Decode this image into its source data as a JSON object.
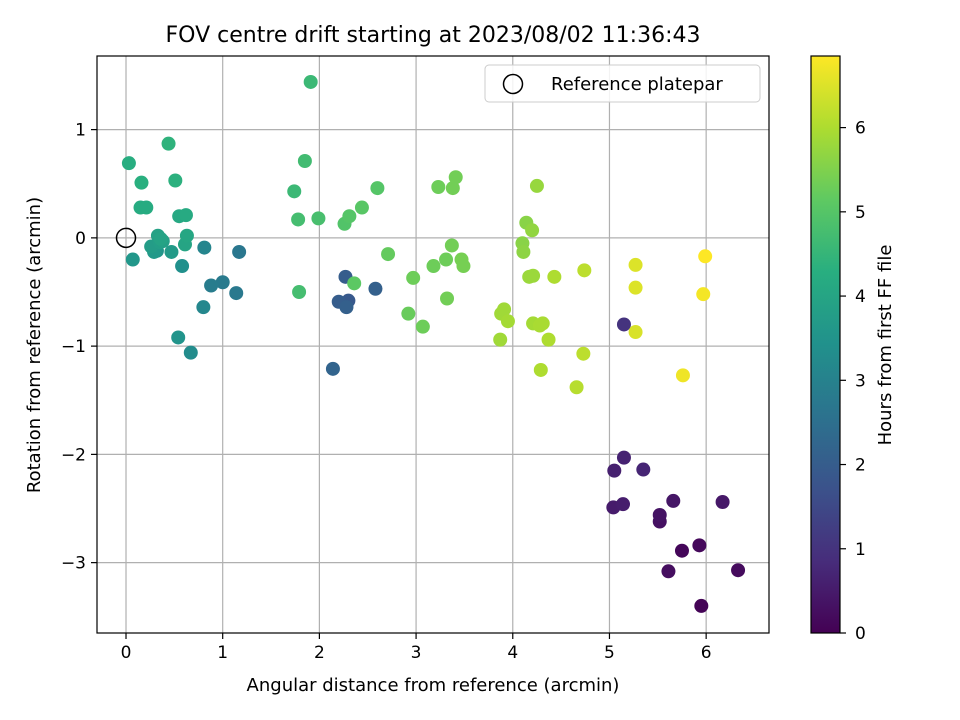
{
  "chart_data": {
    "type": "scatter",
    "title": "FOV centre drift starting at 2023/08/02 11:36:43",
    "xlabel": "Angular distance from reference (arcmin)",
    "ylabel": "Rotation from reference (arcmin)",
    "xlim": [
      -0.3,
      6.65
    ],
    "ylim": [
      -3.65,
      1.68
    ],
    "xticks": [
      0,
      1,
      2,
      3,
      4,
      5,
      6
    ],
    "yticks": [
      -3,
      -2,
      -1,
      0,
      1
    ],
    "xtick_labels": [
      "0",
      "1",
      "2",
      "3",
      "4",
      "5",
      "6"
    ],
    "ytick_labels": [
      "−3",
      "−2",
      "−1",
      "0",
      "1"
    ],
    "grid": true,
    "legend": {
      "position": "top-right",
      "entries": [
        "Reference platepar"
      ]
    },
    "reference_point": {
      "x": 0,
      "y": 0,
      "name": "Reference platepar"
    },
    "colorbar": {
      "label": "Hours from first FF file",
      "colormap": "viridis",
      "range": [
        0,
        6.85
      ],
      "ticks": [
        0,
        1,
        2,
        3,
        4,
        5,
        6
      ],
      "tick_labels": [
        "0",
        "1",
        "2",
        "3",
        "4",
        "5",
        "6"
      ]
    },
    "points": [
      {
        "x": 5.95,
        "y": -3.4,
        "h": 0.05
      },
      {
        "x": 5.75,
        "y": -2.89,
        "h": 0.1
      },
      {
        "x": 5.93,
        "y": -2.84,
        "h": 0.15
      },
      {
        "x": 6.33,
        "y": -3.07,
        "h": 0.2
      },
      {
        "x": 5.61,
        "y": -3.08,
        "h": 0.25
      },
      {
        "x": 5.52,
        "y": -2.62,
        "h": 0.3
      },
      {
        "x": 5.52,
        "y": -2.56,
        "h": 0.35
      },
      {
        "x": 5.66,
        "y": -2.43,
        "h": 0.4
      },
      {
        "x": 6.17,
        "y": -2.44,
        "h": 0.45
      },
      {
        "x": 5.04,
        "y": -2.49,
        "h": 0.5
      },
      {
        "x": 5.14,
        "y": -2.46,
        "h": 0.55
      },
      {
        "x": 5.05,
        "y": -2.15,
        "h": 0.6
      },
      {
        "x": 5.15,
        "y": -2.03,
        "h": 0.65
      },
      {
        "x": 5.35,
        "y": -2.14,
        "h": 0.7
      },
      {
        "x": 5.15,
        "y": -0.8,
        "h": 1.0
      },
      {
        "x": 2.3,
        "y": -0.58,
        "h": 1.9
      },
      {
        "x": 2.27,
        "y": -0.36,
        "h": 2.0
      },
      {
        "x": 2.2,
        "y": -0.59,
        "h": 2.0
      },
      {
        "x": 2.28,
        "y": -0.64,
        "h": 2.1
      },
      {
        "x": 2.58,
        "y": -0.47,
        "h": 2.1
      },
      {
        "x": 2.14,
        "y": -1.21,
        "h": 2.2
      },
      {
        "x": 1.17,
        "y": -0.13,
        "h": 2.7
      },
      {
        "x": 1.14,
        "y": -0.51,
        "h": 2.75
      },
      {
        "x": 1.0,
        "y": -0.41,
        "h": 2.8
      },
      {
        "x": 0.88,
        "y": -0.44,
        "h": 2.85
      },
      {
        "x": 0.81,
        "y": -0.09,
        "h": 3.1
      },
      {
        "x": 0.8,
        "y": -0.64,
        "h": 3.15
      },
      {
        "x": 0.67,
        "y": -1.06,
        "h": 3.3
      },
      {
        "x": 0.58,
        "y": -0.26,
        "h": 3.4
      },
      {
        "x": 0.54,
        "y": -0.92,
        "h": 3.5
      },
      {
        "x": 0.32,
        "y": -0.12,
        "h": 3.55
      },
      {
        "x": 0.07,
        "y": -0.2,
        "h": 3.6
      },
      {
        "x": 0.29,
        "y": -0.13,
        "h": 3.65
      },
      {
        "x": 0.47,
        "y": -0.13,
        "h": 3.7
      },
      {
        "x": 0.26,
        "y": -0.08,
        "h": 3.75
      },
      {
        "x": 0.35,
        "y": -0.04,
        "h": 3.8
      },
      {
        "x": 0.38,
        "y": -0.03,
        "h": 3.85
      },
      {
        "x": 0.33,
        "y": 0.02,
        "h": 3.9
      },
      {
        "x": 0.36,
        "y": -0.01,
        "h": 3.95
      },
      {
        "x": 0.61,
        "y": -0.06,
        "h": 4.0
      },
      {
        "x": 0.63,
        "y": 0.02,
        "h": 4.05
      },
      {
        "x": 0.55,
        "y": 0.2,
        "h": 4.1
      },
      {
        "x": 0.62,
        "y": 0.21,
        "h": 4.15
      },
      {
        "x": 0.15,
        "y": 0.28,
        "h": 4.2
      },
      {
        "x": 0.21,
        "y": 0.28,
        "h": 4.2
      },
      {
        "x": 0.03,
        "y": 0.69,
        "h": 4.25
      },
      {
        "x": 0.16,
        "y": 0.51,
        "h": 4.3
      },
      {
        "x": 0.51,
        "y": 0.53,
        "h": 4.35
      },
      {
        "x": 0.44,
        "y": 0.87,
        "h": 4.4
      },
      {
        "x": 1.74,
        "y": 0.43,
        "h": 4.6
      },
      {
        "x": 1.85,
        "y": 0.71,
        "h": 4.7
      },
      {
        "x": 1.78,
        "y": 0.17,
        "h": 4.75
      },
      {
        "x": 1.99,
        "y": 0.18,
        "h": 4.8
      },
      {
        "x": 1.91,
        "y": 1.44,
        "h": 4.6
      },
      {
        "x": 1.79,
        "y": -0.5,
        "h": 4.75
      },
      {
        "x": 2.26,
        "y": 0.13,
        "h": 4.95
      },
      {
        "x": 2.31,
        "y": 0.2,
        "h": 5.0
      },
      {
        "x": 2.44,
        "y": 0.28,
        "h": 5.05
      },
      {
        "x": 2.6,
        "y": 0.46,
        "h": 5.0
      },
      {
        "x": 2.36,
        "y": -0.42,
        "h": 5.1
      },
      {
        "x": 2.71,
        "y": -0.15,
        "h": 5.2
      },
      {
        "x": 2.92,
        "y": -0.7,
        "h": 5.25
      },
      {
        "x": 2.97,
        "y": -0.37,
        "h": 5.3
      },
      {
        "x": 3.07,
        "y": -0.82,
        "h": 5.3
      },
      {
        "x": 3.18,
        "y": -0.26,
        "h": 5.3
      },
      {
        "x": 3.23,
        "y": 0.47,
        "h": 5.3
      },
      {
        "x": 3.31,
        "y": -0.2,
        "h": 5.3
      },
      {
        "x": 3.32,
        "y": -0.56,
        "h": 5.35
      },
      {
        "x": 3.37,
        "y": -0.07,
        "h": 5.35
      },
      {
        "x": 3.38,
        "y": 0.46,
        "h": 5.35
      },
      {
        "x": 3.41,
        "y": 0.56,
        "h": 5.35
      },
      {
        "x": 3.47,
        "y": -0.2,
        "h": 5.4
      },
      {
        "x": 3.49,
        "y": -0.26,
        "h": 5.4
      },
      {
        "x": 3.87,
        "y": -0.94,
        "h": 5.85
      },
      {
        "x": 3.88,
        "y": -0.7,
        "h": 5.85
      },
      {
        "x": 3.91,
        "y": -0.66,
        "h": 5.85
      },
      {
        "x": 3.95,
        "y": -0.77,
        "h": 5.9
      },
      {
        "x": 4.1,
        "y": -0.05,
        "h": 5.6
      },
      {
        "x": 4.11,
        "y": -0.13,
        "h": 5.65
      },
      {
        "x": 4.14,
        "y": 0.14,
        "h": 5.6
      },
      {
        "x": 4.17,
        "y": -0.36,
        "h": 5.8
      },
      {
        "x": 4.2,
        "y": 0.07,
        "h": 5.7
      },
      {
        "x": 4.21,
        "y": -0.35,
        "h": 5.8
      },
      {
        "x": 4.21,
        "y": -0.79,
        "h": 5.9
      },
      {
        "x": 4.25,
        "y": 0.48,
        "h": 5.75
      },
      {
        "x": 4.28,
        "y": -0.81,
        "h": 5.95
      },
      {
        "x": 4.29,
        "y": -1.22,
        "h": 6.0
      },
      {
        "x": 4.31,
        "y": -0.79,
        "h": 5.95
      },
      {
        "x": 4.37,
        "y": -0.94,
        "h": 6.0
      },
      {
        "x": 4.43,
        "y": -0.36,
        "h": 6.0
      },
      {
        "x": 4.66,
        "y": -1.38,
        "h": 6.1
      },
      {
        "x": 4.73,
        "y": -1.07,
        "h": 6.15
      },
      {
        "x": 4.74,
        "y": -0.3,
        "h": 6.15
      },
      {
        "x": 5.27,
        "y": -0.25,
        "h": 6.5
      },
      {
        "x": 5.27,
        "y": -0.46,
        "h": 6.5
      },
      {
        "x": 5.27,
        "y": -0.87,
        "h": 6.45
      },
      {
        "x": 5.76,
        "y": -1.27,
        "h": 6.7
      },
      {
        "x": 5.97,
        "y": -0.52,
        "h": 6.75
      },
      {
        "x": 5.99,
        "y": -0.17,
        "h": 6.85
      }
    ]
  }
}
